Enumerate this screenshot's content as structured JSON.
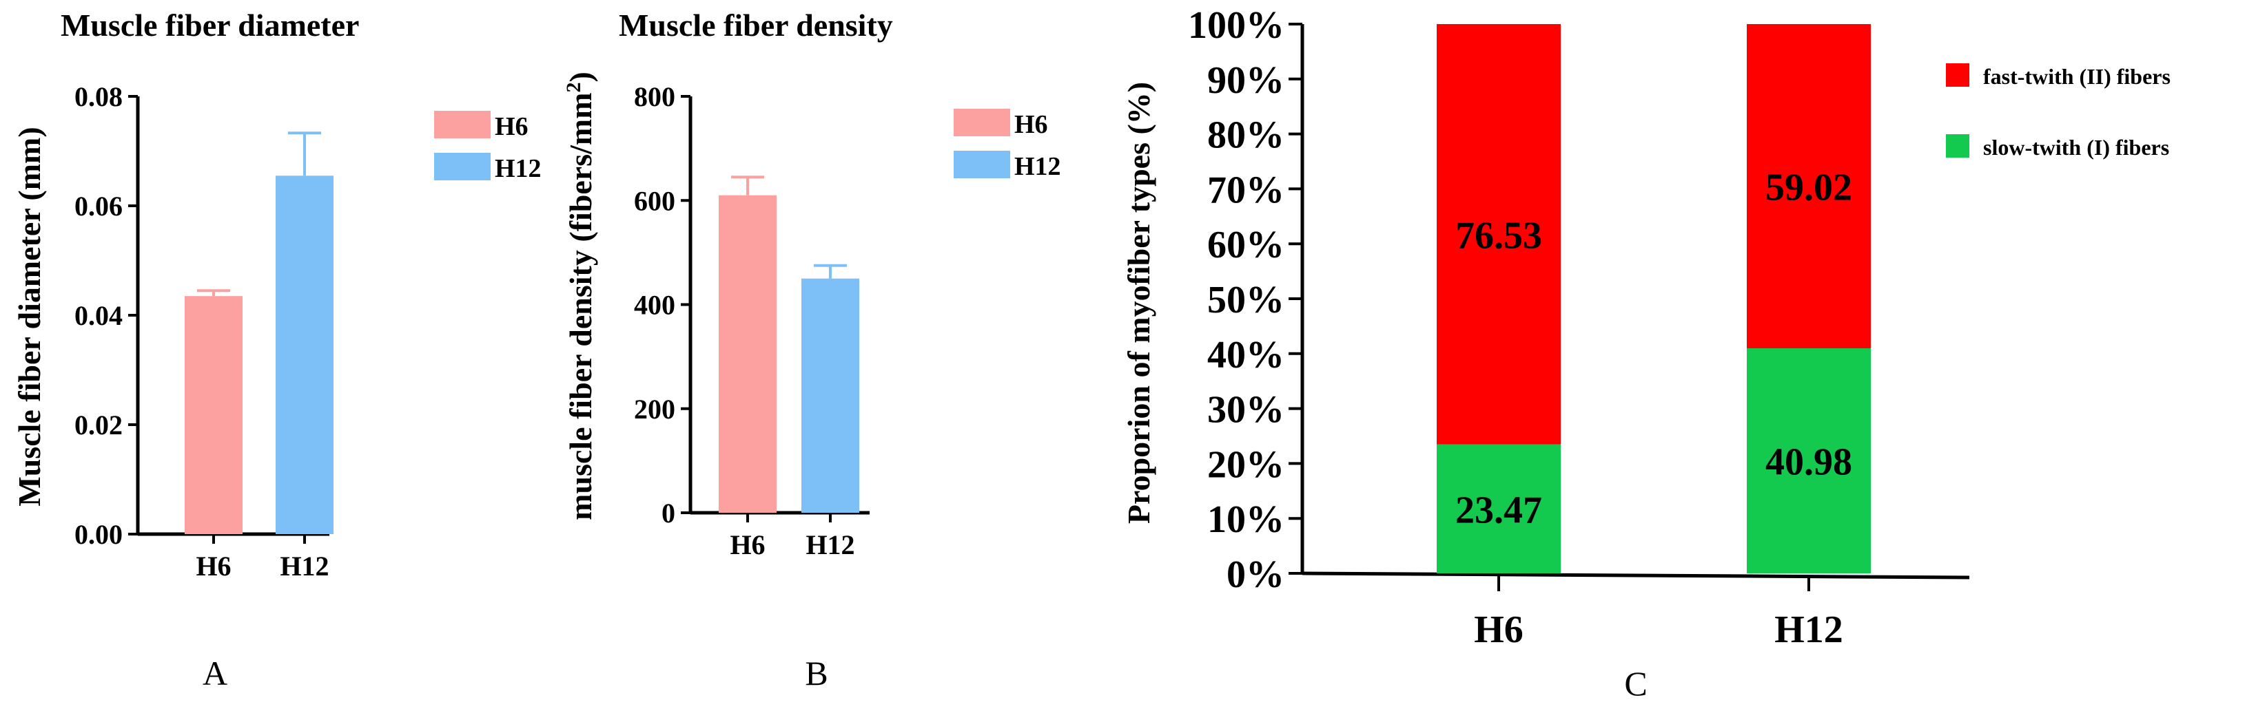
{
  "colors": {
    "h6": "#FDA0A0",
    "h12": "#7DC0F7",
    "fast": "#FF0000",
    "slow": "#13C94E"
  },
  "chart_data": [
    {
      "id": "A",
      "panel_label": "A",
      "type": "bar",
      "title": "Muscle fiber diameter",
      "ylabel": "Muscle fiber diameter (mm)",
      "xlabel": "",
      "categories": [
        "H6",
        "H12"
      ],
      "values": [
        0.0435,
        0.0655
      ],
      "errors": [
        0.001,
        0.0078
      ],
      "ylim": [
        0,
        0.08
      ],
      "yticks": [
        0,
        0.02,
        0.04,
        0.06,
        0.08
      ],
      "ytick_labels": [
        "0.00",
        "0.02",
        "0.04",
        "0.06",
        "0.08"
      ],
      "legend": [
        "H6",
        "H12"
      ]
    },
    {
      "id": "B",
      "panel_label": "B",
      "type": "bar",
      "title": "Muscle fiber density",
      "ylabel_prefix": "muscle fiber density (fibers/mm",
      "ylabel_sup": "2",
      "ylabel_suffix": ")",
      "xlabel": "",
      "categories": [
        "H6",
        "H12"
      ],
      "values": [
        610,
        450
      ],
      "errors": [
        35,
        25
      ],
      "ylim": [
        0,
        800
      ],
      "yticks": [
        0,
        200,
        400,
        600,
        800
      ],
      "ytick_labels": [
        "0",
        "200",
        "400",
        "600",
        "800"
      ],
      "legend": [
        "H6",
        "H12"
      ]
    },
    {
      "id": "C",
      "panel_label": "C",
      "type": "bar",
      "stacked": true,
      "title": "",
      "ylabel": "Proporion of myofiber types (%)",
      "xlabel": "",
      "categories": [
        "H6",
        "H12"
      ],
      "series": [
        {
          "name": "slow-twith (I) fibers",
          "values": [
            23.47,
            40.98
          ],
          "labels": [
            "23.47",
            "40.98"
          ]
        },
        {
          "name": "fast-twith (II) fibers",
          "values": [
            76.53,
            59.02
          ],
          "labels": [
            "76.53",
            "59.02"
          ]
        }
      ],
      "ylim": [
        0,
        100
      ],
      "yticks": [
        0,
        10,
        20,
        30,
        40,
        50,
        60,
        70,
        80,
        90,
        100
      ],
      "ytick_labels": [
        "0%",
        "10%",
        "20%",
        "30%",
        "40%",
        "50%",
        "60%",
        "70%",
        "80%",
        "90%",
        "100%"
      ],
      "legend": [
        "fast-twith (II) fibers",
        "slow-twith (I) fibers"
      ],
      "legend_position": "top-right"
    }
  ]
}
